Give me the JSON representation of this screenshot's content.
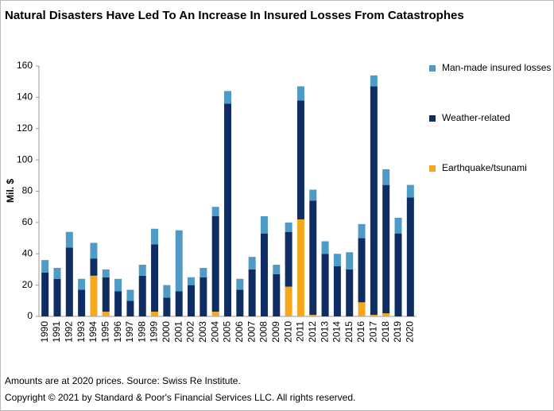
{
  "chart_data": {
    "type": "stacked_bar",
    "title": "Natural Disasters Have Led To An Increase In Insured Losses From Catastrophes",
    "y_label": "Mil. $",
    "categories": [
      "1990",
      "1991",
      "1992",
      "1993",
      "1994",
      "1995",
      "1996",
      "1997",
      "1998",
      "1999",
      "2000",
      "2001",
      "2002",
      "2003",
      "2004",
      "2005",
      "2006",
      "2007",
      "2008",
      "2009",
      "2010",
      "2011",
      "2012",
      "2013",
      "2014",
      "2015",
      "2016",
      "2017",
      "2018",
      "2019",
      "2020"
    ],
    "series": [
      {
        "name": "Man-made insured losses",
        "color": "#4e9bc8",
        "values": [
          8,
          7,
          10,
          7,
          10,
          5,
          8,
          7,
          7,
          10,
          8,
          39,
          5,
          6,
          6,
          8,
          7,
          8,
          11,
          6,
          6,
          9,
          7,
          8,
          8,
          11,
          9,
          7,
          10,
          10,
          8
        ]
      },
      {
        "name": "Weather-related",
        "color": "#0f2d62",
        "values": [
          28,
          24,
          44,
          17,
          11,
          22,
          16,
          10,
          26,
          43,
          12,
          16,
          20,
          25,
          61,
          136,
          17,
          30,
          53,
          27,
          35,
          76,
          73,
          40,
          32,
          30,
          41,
          146,
          82,
          53,
          76
        ]
      },
      {
        "name": "Earthquake/tsunami",
        "color": "#f5a81c",
        "values": [
          0,
          0,
          0,
          0,
          26,
          3,
          0,
          0,
          0,
          3,
          0,
          0,
          0,
          0,
          3,
          0,
          0,
          0,
          0,
          0,
          19,
          62,
          1,
          0,
          0,
          0,
          9,
          1,
          2,
          0,
          0
        ]
      }
    ],
    "ylim": [
      0,
      160
    ],
    "yticks": [
      0,
      20,
      40,
      60,
      80,
      100,
      120,
      140,
      160
    ],
    "grid": false,
    "legend": "right",
    "notes": [
      "Amounts are at 2020 prices. Source: Swiss Re Institute.",
      "Copyright © 2021 by Standard & Poor's Financial Services LLC. All rights reserved."
    ]
  }
}
